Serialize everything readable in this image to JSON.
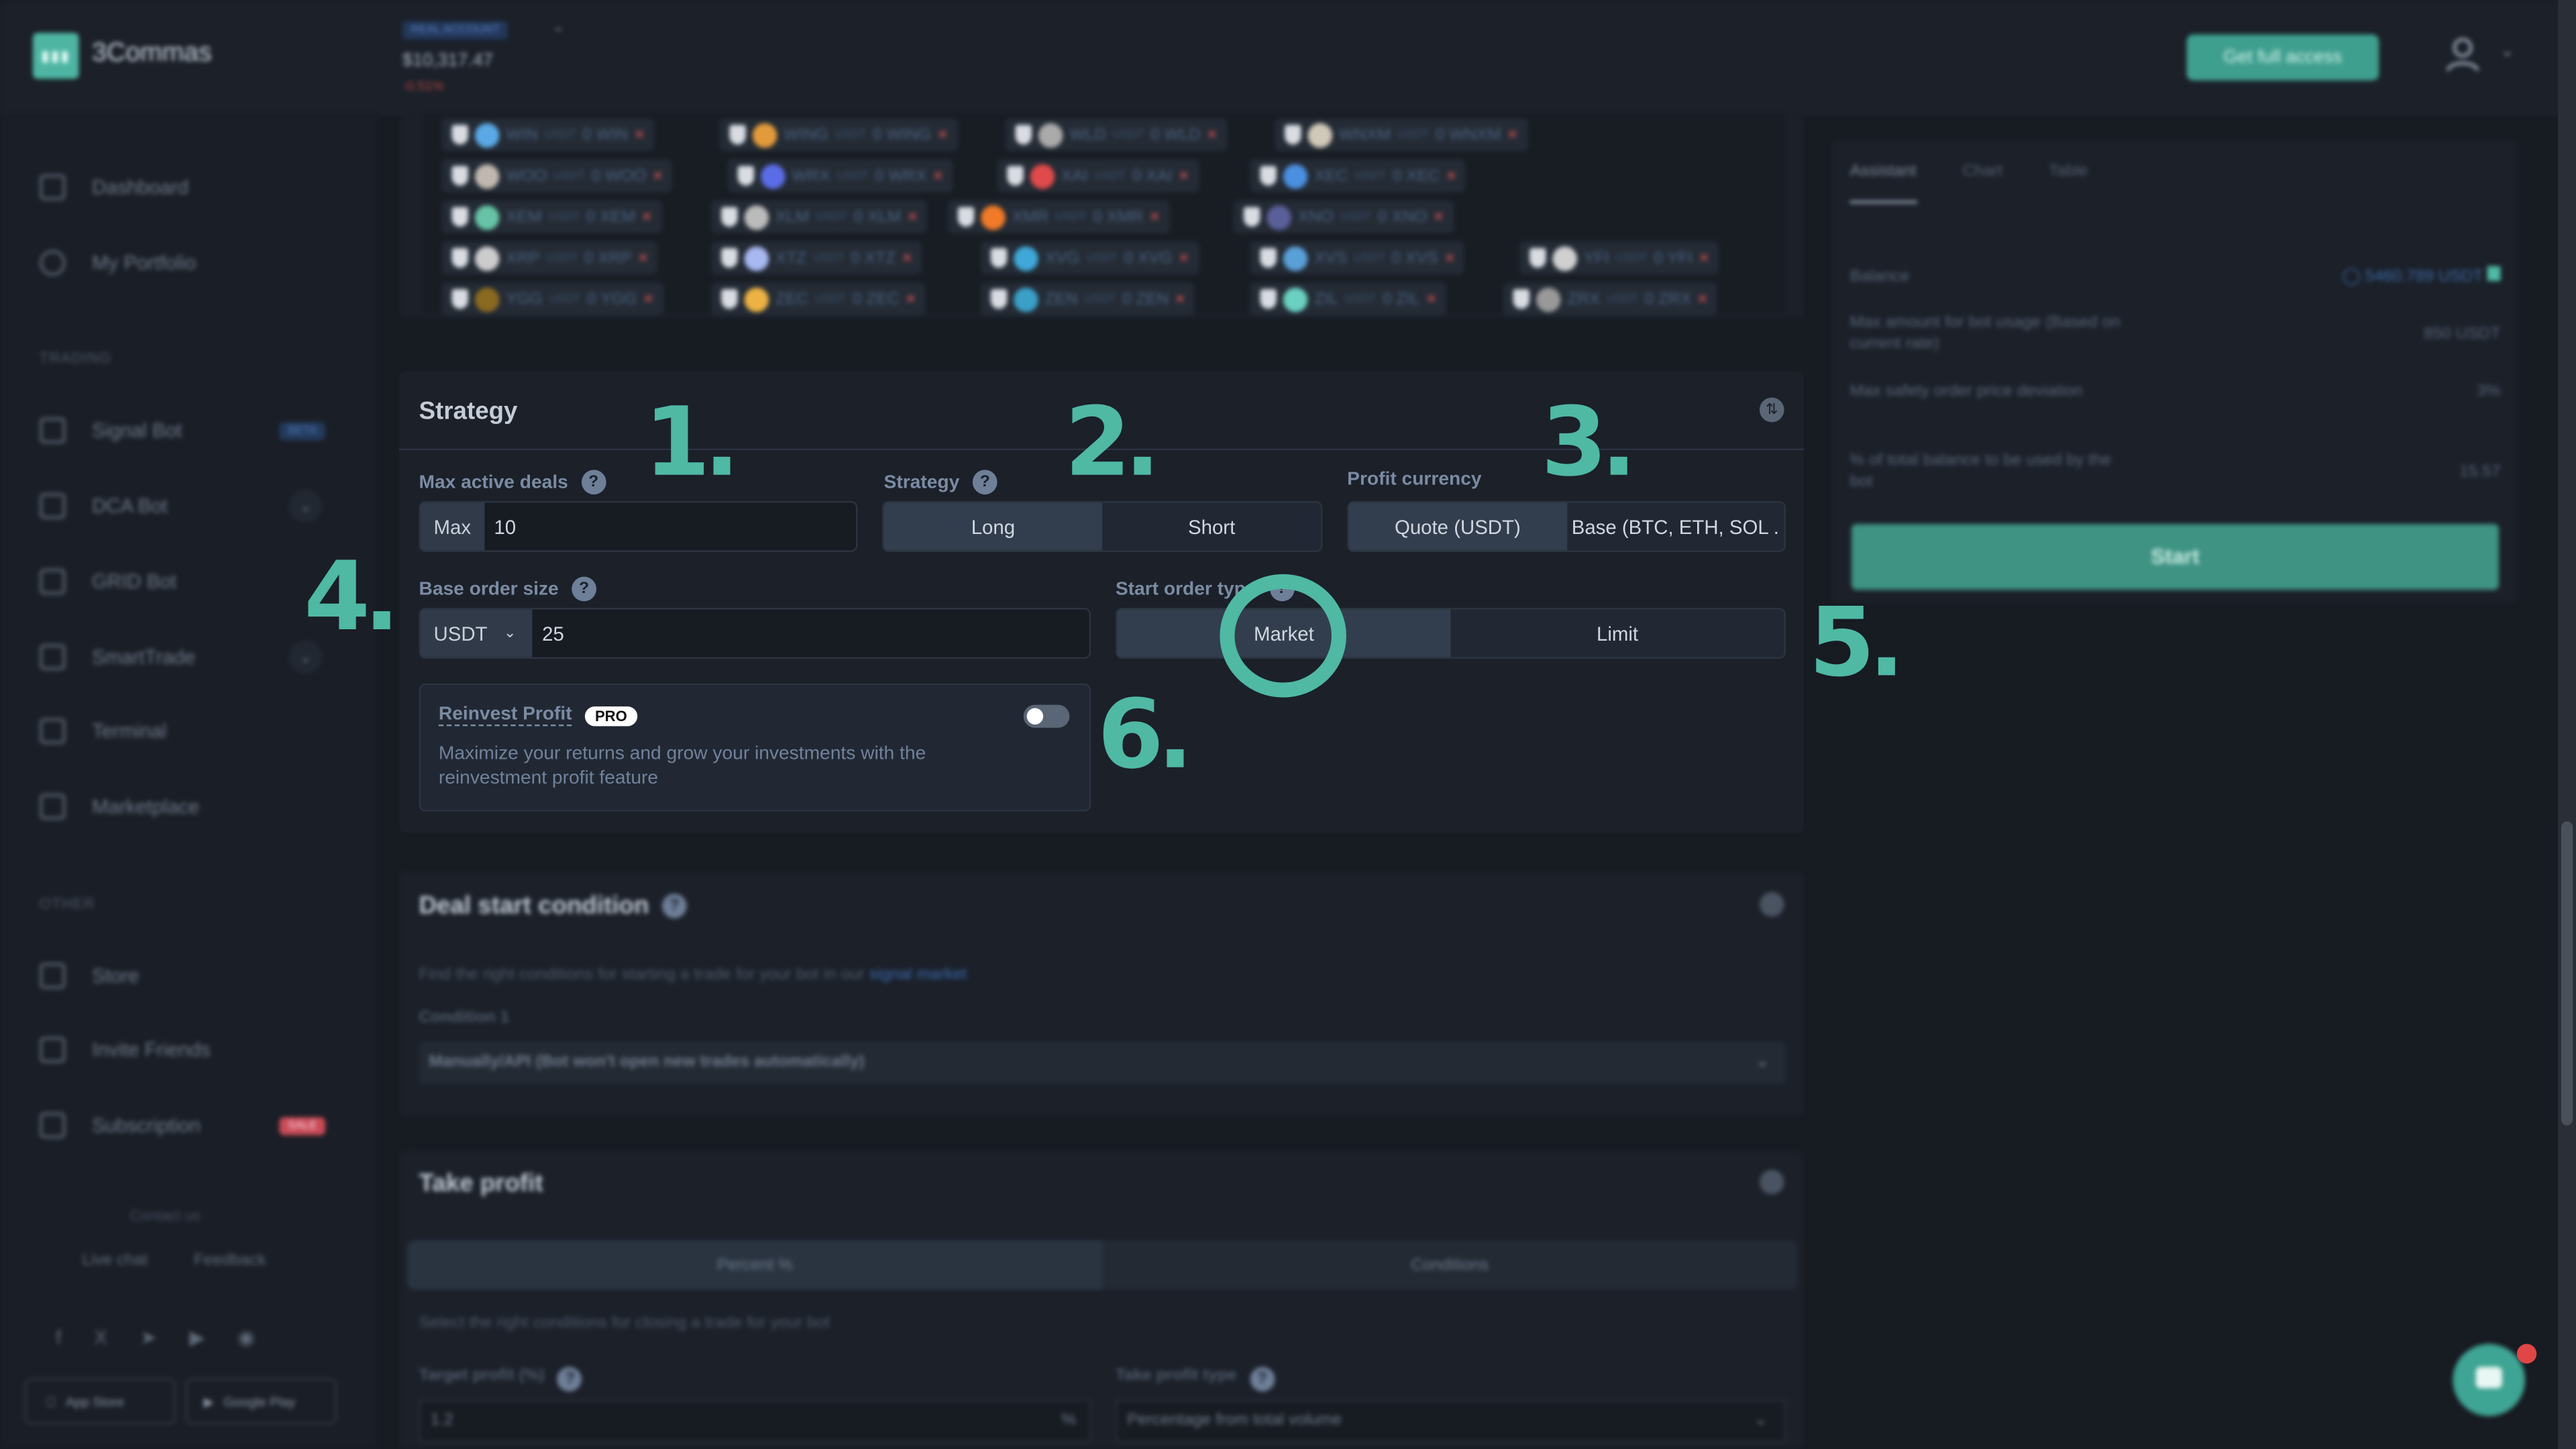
{
  "header": {
    "brand": "3Commas",
    "account_type": "REAL ACCOUNT",
    "balance": "$10,317.47",
    "change": "-0.51%",
    "get_full_access": "Get full access"
  },
  "sidebar": {
    "items": [
      {
        "label": "Dashboard"
      },
      {
        "label": "My Portfolio"
      },
      {
        "label": "Signal Bot",
        "badge": "BETA"
      },
      {
        "label": "DCA Bot"
      },
      {
        "label": "GRID Bot"
      },
      {
        "label": "SmartTrade"
      },
      {
        "label": "Terminal"
      },
      {
        "label": "Marketplace"
      },
      {
        "label": "Store"
      },
      {
        "label": "Invite Friends"
      },
      {
        "label": "Subscription",
        "badge": "SALE"
      }
    ],
    "sections": {
      "trading": "TRADING",
      "other": "OTHER"
    },
    "contact_us": "Contact us",
    "live_chat": "Live chat",
    "feedback": "Feedback",
    "app_store": "App Store",
    "google_play": "Google Play"
  },
  "pairs": {
    "quote": "USDT",
    "rows": [
      [
        {
          "base": "WIN",
          "color": "#5aa9e6"
        },
        {
          "base": "WING",
          "color": "#e39a3b"
        },
        {
          "base": "WLD",
          "color": "#aaaaaa"
        },
        {
          "base": "WNXM",
          "color": "#d0c8b8"
        }
      ],
      [
        {
          "base": "WOO",
          "color": "#c0b8b0"
        },
        {
          "base": "WRX",
          "color": "#5a6de6"
        },
        {
          "base": "XAI",
          "color": "#e04a4a"
        },
        {
          "base": "XEC",
          "color": "#4a8fe0"
        }
      ],
      [
        {
          "base": "XEM",
          "color": "#67c3a6"
        },
        {
          "base": "XLM",
          "color": "#bbbbbb"
        },
        {
          "base": "XMR",
          "color": "#f07a28"
        },
        {
          "base": "XNO",
          "color": "#5a5f9a"
        }
      ],
      [
        {
          "base": "XRP",
          "color": "#cccccc"
        },
        {
          "base": "XTZ",
          "color": "#a8b8f0"
        },
        {
          "base": "XVG",
          "color": "#40a8d8"
        },
        {
          "base": "XVS",
          "color": "#5aa0d8"
        },
        {
          "base": "YFI",
          "color": "#d0d0d0"
        }
      ],
      [
        {
          "base": "YGG",
          "color": "#8a6a20"
        },
        {
          "base": "ZEC",
          "color": "#ecb244"
        },
        {
          "base": "ZEN",
          "color": "#3aa0c8"
        },
        {
          "base": "ZIL",
          "color": "#6ad0c0"
        },
        {
          "base": "ZRX",
          "color": "#999999"
        }
      ]
    ]
  },
  "strategy": {
    "title": "Strategy",
    "max_active_deals": {
      "label": "Max active deals",
      "prefix": "Max",
      "value": "10"
    },
    "strategy": {
      "label": "Strategy",
      "options": [
        "Long",
        "Short"
      ],
      "selected": "Long"
    },
    "profit_currency": {
      "label": "Profit currency",
      "options": [
        "Quote (USDT)",
        "Base (BTC, ETH, SOL ."
      ],
      "selected": "Quote (USDT)"
    },
    "base_order_size": {
      "label": "Base order size",
      "currency": "USDT",
      "value": "25"
    },
    "start_order_type": {
      "label": "Start order type",
      "options": [
        "Market",
        "Limit"
      ],
      "selected": "Market"
    },
    "reinvest": {
      "title": "Reinvest Profit",
      "badge": "PRO",
      "description": "Maximize your returns and grow your investments with the reinvestment profit feature",
      "enabled": false
    }
  },
  "deal_start": {
    "title": "Deal start condition",
    "hint": "Find the right conditions for starting a trade for your bot in our",
    "link": "signal market",
    "condition_label": "Condition 1",
    "condition_value": "Manually/API (Bot won't open new trades automatically)"
  },
  "take_profit": {
    "title": "Take profit",
    "tabs": [
      "Percent %",
      "Conditions"
    ],
    "hint": "Select the right conditions for closing a trade for your bot",
    "target_label": "Target profit (%)",
    "target_value": "1.2",
    "target_unit": "%",
    "type_label": "Take profit type",
    "type_value": "Percentage from total volume"
  },
  "assistant": {
    "tabs": [
      "Assistant",
      "Chart",
      "Table"
    ],
    "balance_label": "Balance",
    "balance_value": "5460.789 USDT",
    "max_amount_label": "Max amount for bot usage (Based on current rate)",
    "max_amount_value": "850 USDT",
    "max_safety_label": "Max safety order price deviation",
    "max_safety_value": "3%",
    "pct_label": "% of total balance to be used by the bot",
    "pct_value": "15.57",
    "start": "Start"
  },
  "annotations": [
    "1.",
    "2.",
    "3.",
    "4.",
    "5.",
    "6."
  ],
  "colors": {
    "accent": "#4fb9a4",
    "danger": "#e04646",
    "bg": "#171b22"
  }
}
